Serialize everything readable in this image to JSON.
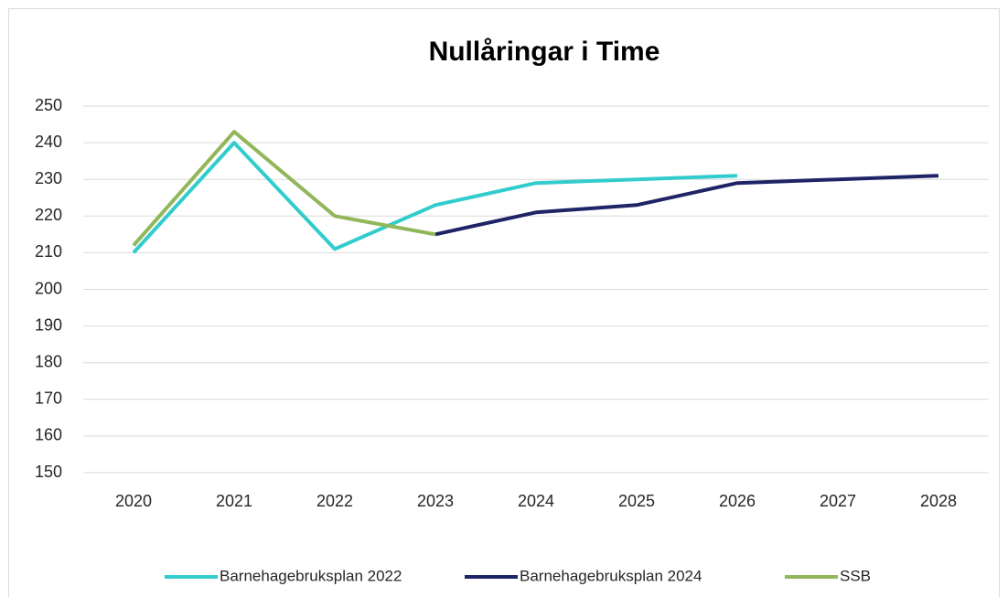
{
  "chart_data": {
    "type": "line",
    "title": "Nullåringar i Time",
    "categories": [
      "2020",
      "2021",
      "2022",
      "2023",
      "2024",
      "2025",
      "2026",
      "2027",
      "2028"
    ],
    "series": [
      {
        "name": "Barnehagebruksplan 2022",
        "color": "#33cccc",
        "values": [
          210,
          240,
          211,
          223,
          229,
          230,
          231,
          null,
          null
        ]
      },
      {
        "name": "Barnehagebruksplan 2024",
        "color": "#1f2466",
        "values": [
          null,
          null,
          null,
          215,
          221,
          223,
          229,
          230,
          231
        ]
      },
      {
        "name": "SSB",
        "color": "#92b75a",
        "values": [
          212,
          243,
          220,
          215,
          null,
          null,
          null,
          null,
          null
        ]
      }
    ],
    "ylim": [
      150,
      250
    ],
    "yticks": [
      150,
      160,
      170,
      180,
      190,
      200,
      210,
      220,
      230,
      240,
      250
    ],
    "grid": true,
    "legend": "bottom"
  }
}
